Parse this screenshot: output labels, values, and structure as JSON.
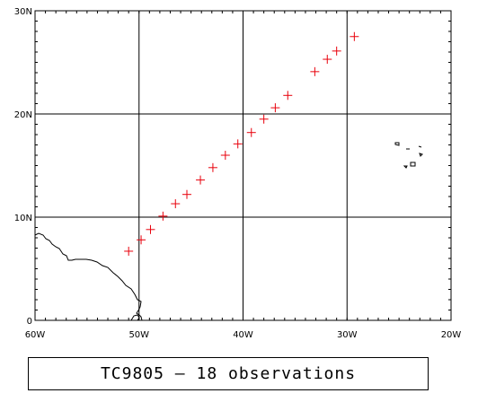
{
  "chart_data": {
    "type": "scatter",
    "marker": "plus",
    "marker_color": "#e8000b",
    "grid": true,
    "xlim": [
      -60,
      -20
    ],
    "ylim": [
      0,
      30
    ],
    "x_ticks": [
      {
        "value": -60,
        "label": "60W"
      },
      {
        "value": -50,
        "label": "50W"
      },
      {
        "value": -40,
        "label": "40W"
      },
      {
        "value": -30,
        "label": "30W"
      },
      {
        "value": -20,
        "label": "20W"
      }
    ],
    "y_ticks": [
      {
        "value": 0,
        "label": "0"
      },
      {
        "value": 10,
        "label": "10N"
      },
      {
        "value": 20,
        "label": "20N"
      },
      {
        "value": 30,
        "label": "30N"
      }
    ],
    "points": [
      {
        "lon": -51.0,
        "lat": 6.7
      },
      {
        "lon": -49.8,
        "lat": 7.8
      },
      {
        "lon": -48.9,
        "lat": 8.8
      },
      {
        "lon": -47.7,
        "lat": 10.1
      },
      {
        "lon": -46.5,
        "lat": 11.3
      },
      {
        "lon": -45.4,
        "lat": 12.2
      },
      {
        "lon": -44.1,
        "lat": 13.6
      },
      {
        "lon": -42.9,
        "lat": 14.8
      },
      {
        "lon": -41.7,
        "lat": 16.0
      },
      {
        "lon": -40.5,
        "lat": 17.1
      },
      {
        "lon": -39.2,
        "lat": 18.2
      },
      {
        "lon": -38.0,
        "lat": 19.5
      },
      {
        "lon": -36.9,
        "lat": 20.6
      },
      {
        "lon": -35.7,
        "lat": 21.8
      },
      {
        "lon": -33.1,
        "lat": 24.1
      },
      {
        "lon": -31.9,
        "lat": 25.3
      },
      {
        "lon": -31.0,
        "lat": 26.1
      },
      {
        "lon": -29.3,
        "lat": 27.5
      }
    ],
    "caption": "TC9805 — 18 observations"
  }
}
